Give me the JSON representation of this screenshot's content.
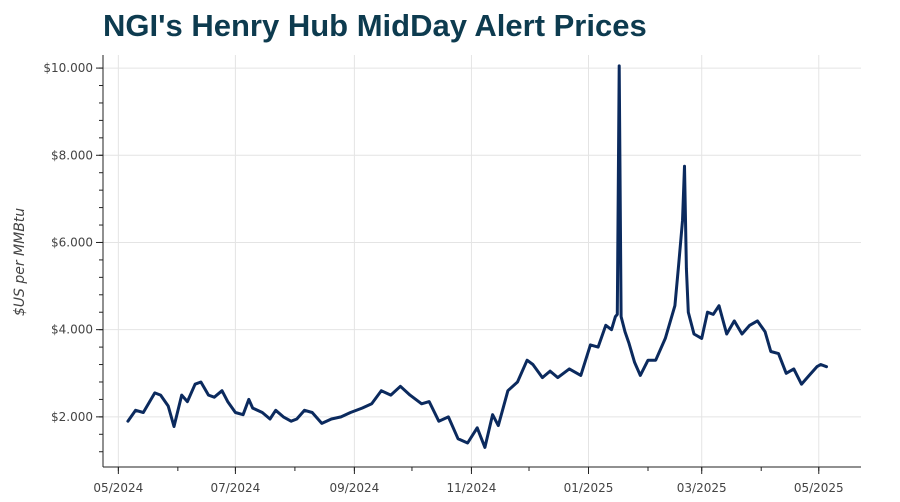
{
  "colors": {
    "title": "#0d3b4f",
    "line": "#0b2a5e",
    "grid": "#e4e4e4",
    "axis": "#222222",
    "tick_text": "#444444"
  },
  "chart_data": {
    "type": "line",
    "title": "NGI's Henry Hub MidDay Alert Prices",
    "xlabel": "",
    "ylabel": "$US per MMBtu",
    "x_range": [
      "2024-04-23",
      "2025-05-23"
    ],
    "ylim": [
      0.85,
      10.3
    ],
    "grid": true,
    "legend": "none",
    "x_ticks": [
      {
        "date": "2024-05-01",
        "label": "05/2024"
      },
      {
        "date": "2024-07-01",
        "label": "07/2024"
      },
      {
        "date": "2024-09-01",
        "label": "09/2024"
      },
      {
        "date": "2024-11-01",
        "label": "11/2024"
      },
      {
        "date": "2025-01-01",
        "label": "01/2025"
      },
      {
        "date": "2025-03-01",
        "label": "03/2025"
      },
      {
        "date": "2025-05-01",
        "label": "05/2025"
      }
    ],
    "y_ticks": [
      {
        "value": 2,
        "label": "$2.000"
      },
      {
        "value": 4,
        "label": "$4.000"
      },
      {
        "value": 6,
        "label": "$6.000"
      },
      {
        "value": 8,
        "label": "$8.000"
      },
      {
        "value": 10,
        "label": "$10.000"
      }
    ],
    "series": [
      {
        "x": [
          "2024-05-06",
          "2024-05-10",
          "2024-05-14",
          "2024-05-20",
          "2024-05-23",
          "2024-05-27",
          "2024-05-30",
          "2024-06-03",
          "2024-06-06",
          "2024-06-10",
          "2024-06-13",
          "2024-06-17",
          "2024-06-20",
          "2024-06-24",
          "2024-06-27",
          "2024-07-01",
          "2024-07-05",
          "2024-07-08",
          "2024-07-10",
          "2024-07-15",
          "2024-07-19",
          "2024-07-22",
          "2024-07-26",
          "2024-07-30",
          "2024-08-02",
          "2024-08-06",
          "2024-08-10",
          "2024-08-15",
          "2024-08-20",
          "2024-08-25",
          "2024-08-30",
          "2024-09-05",
          "2024-09-10",
          "2024-09-15",
          "2024-09-20",
          "2024-09-25",
          "2024-09-30",
          "2024-10-03",
          "2024-10-06",
          "2024-10-10",
          "2024-10-15",
          "2024-10-20",
          "2024-10-25",
          "2024-10-30",
          "2024-11-04",
          "2024-11-08",
          "2024-11-12",
          "2024-11-15",
          "2024-11-20",
          "2024-11-25",
          "2024-11-30",
          "2024-12-03",
          "2024-12-08",
          "2024-12-12",
          "2024-12-16",
          "2024-12-22",
          "2024-12-28",
          "2025-01-02",
          "2025-01-06",
          "2025-01-10",
          "2025-01-13",
          "2025-01-15",
          "2025-01-16",
          "2025-01-17",
          "2025-01-18",
          "2025-01-20",
          "2025-01-22",
          "2025-01-25",
          "2025-01-28",
          "2025-02-01",
          "2025-02-05",
          "2025-02-10",
          "2025-02-15",
          "2025-02-17",
          "2025-02-19",
          "2025-02-20",
          "2025-02-21",
          "2025-02-22",
          "2025-02-25",
          "2025-03-01",
          "2025-03-04",
          "2025-03-07",
          "2025-03-10",
          "2025-03-14",
          "2025-03-18",
          "2025-03-22",
          "2025-03-26",
          "2025-03-30",
          "2025-04-03",
          "2025-04-06",
          "2025-04-10",
          "2025-04-14",
          "2025-04-18",
          "2025-04-22",
          "2025-04-26",
          "2025-04-30",
          "2025-05-02",
          "2025-05-05"
        ],
        "values": [
          1.9,
          2.15,
          2.1,
          2.55,
          2.5,
          2.25,
          1.78,
          2.5,
          2.35,
          2.75,
          2.8,
          2.5,
          2.45,
          2.6,
          2.35,
          2.1,
          2.05,
          2.4,
          2.2,
          2.1,
          1.95,
          2.15,
          2.0,
          1.9,
          1.95,
          2.15,
          2.1,
          1.85,
          1.95,
          2.0,
          2.1,
          2.2,
          2.3,
          2.6,
          2.5,
          2.7,
          2.5,
          2.4,
          2.3,
          2.35,
          1.9,
          2.0,
          1.5,
          1.4,
          1.75,
          1.3,
          2.05,
          1.8,
          2.6,
          2.8,
          3.3,
          3.2,
          2.9,
          3.05,
          2.9,
          3.1,
          2.95,
          3.65,
          3.6,
          4.1,
          4.0,
          4.3,
          4.35,
          10.05,
          4.3,
          3.95,
          3.7,
          3.25,
          2.95,
          3.3,
          3.3,
          3.8,
          4.55,
          5.5,
          6.5,
          7.75,
          5.4,
          4.4,
          3.9,
          3.8,
          4.4,
          4.35,
          4.55,
          3.9,
          4.2,
          3.9,
          4.1,
          4.2,
          3.95,
          3.5,
          3.45,
          3.0,
          3.1,
          2.75,
          2.95,
          3.15,
          3.2,
          3.15
        ]
      }
    ]
  }
}
